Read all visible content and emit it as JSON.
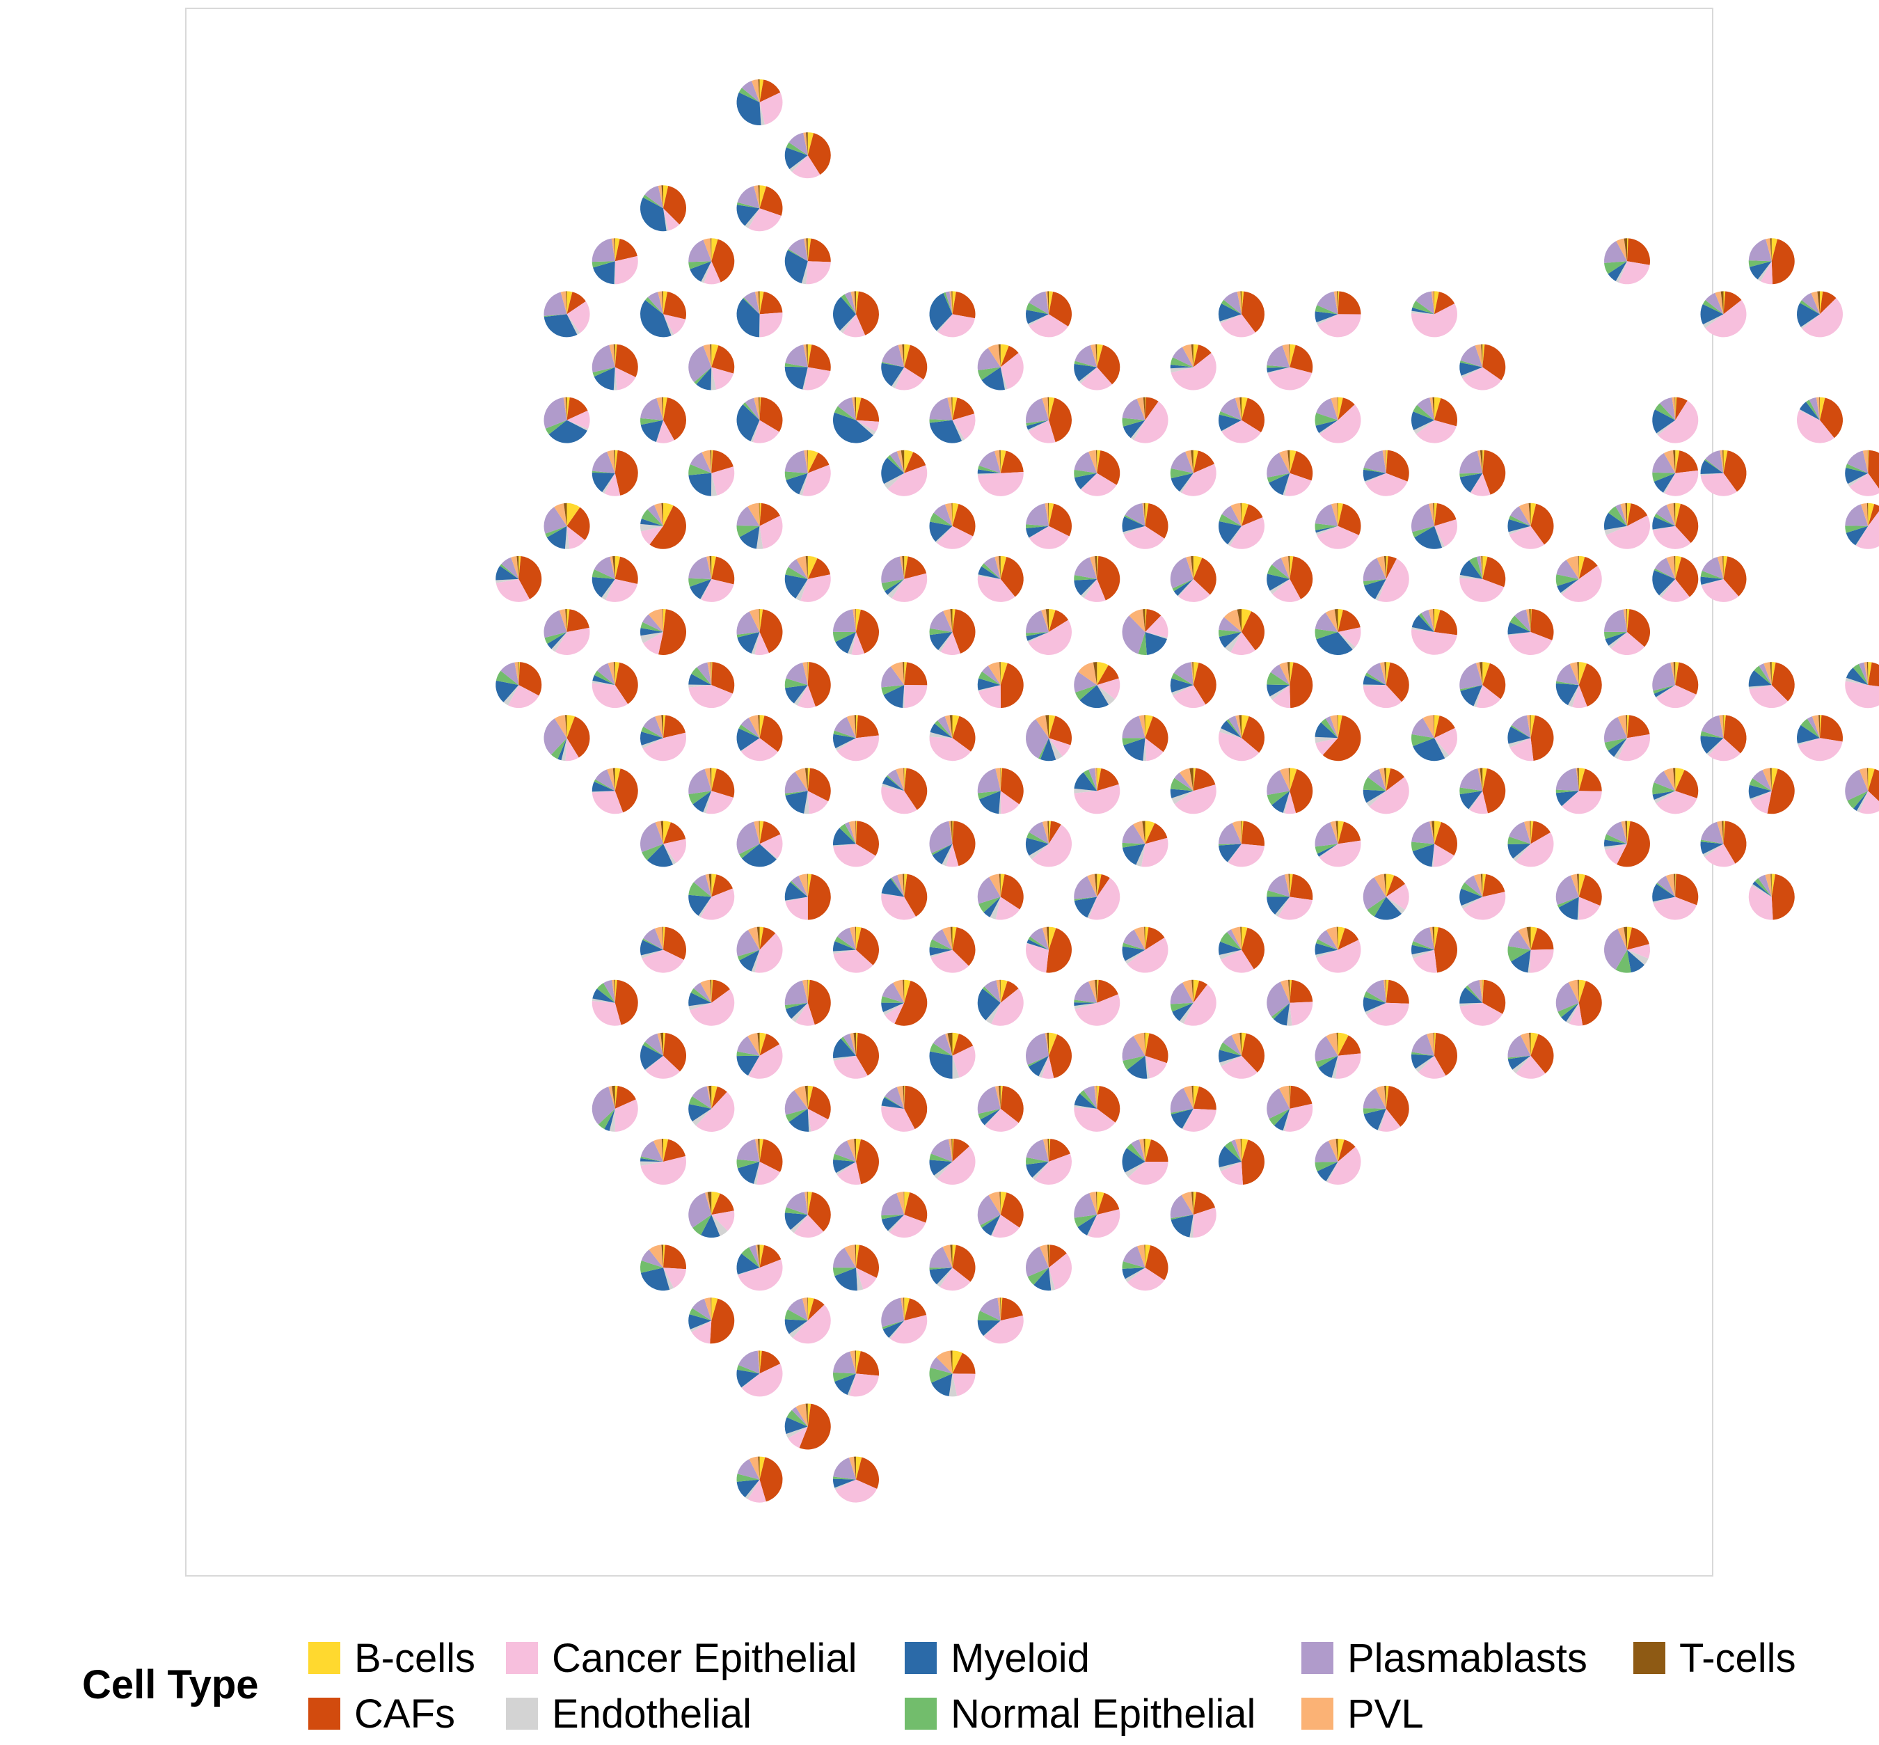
{
  "chart_data": {
    "type": "scatter-pie",
    "title": "",
    "xlabel": "",
    "ylabel": "",
    "grid": false,
    "legend": {
      "title": "Cell Type",
      "placement": "bottom",
      "columns": 5
    },
    "categories": [
      {
        "name": "B-cells",
        "color": "#FFD92F"
      },
      {
        "name": "CAFs",
        "color": "#D24B0E"
      },
      {
        "name": "Cancer Epithelial",
        "color": "#F7BFDD"
      },
      {
        "name": "Endothelial",
        "color": "#D3D3D3"
      },
      {
        "name": "Myeloid",
        "color": "#2B6AA8"
      },
      {
        "name": "Normal Epithelial",
        "color": "#72BD6C"
      },
      {
        "name": "Plasmablasts",
        "color": "#B09BCB"
      },
      {
        "name": "PVL",
        "color": "#FBB275"
      },
      {
        "name": "T-cells",
        "color": "#8E5A14"
      }
    ],
    "spot_rows": [
      {
        "y": 0,
        "segments": [
          [
            10,
            11
          ]
        ]
      },
      {
        "y": 1,
        "segments": [
          [
            10,
            11
          ]
        ]
      },
      {
        "y": 2,
        "segments": [
          [
            8,
            11
          ]
        ]
      },
      {
        "y": 3,
        "segments": [
          [
            7,
            12
          ]
        ],
        "extra": [
          [
            28,
            1
          ],
          [
            31,
            1
          ]
        ]
      },
      {
        "y": 4,
        "segments": [
          [
            6,
            16
          ],
          [
            19,
            20
          ],
          [
            22,
            24
          ]
        ],
        "extra": [
          [
            30,
            0
          ],
          [
            32,
            0
          ]
        ]
      },
      {
        "y": 5,
        "segments": [
          [
            6,
            22
          ],
          [
            24,
            25
          ]
        ]
      },
      {
        "y": 6,
        "segments": [
          [
            6,
            23
          ],
          [
            24,
            25
          ]
        ],
        "extra": [
          [
            29,
            0
          ],
          [
            32,
            0
          ]
        ]
      },
      {
        "y": 7,
        "segments": [
          [
            6,
            26
          ]
        ],
        "extra": [
          [
            29,
            0
          ],
          [
            30,
            1
          ],
          [
            33,
            0
          ]
        ]
      },
      {
        "y": 8,
        "segments": [
          [
            6,
            11
          ],
          [
            13,
            28
          ]
        ],
        "extra": [
          [
            29,
            0
          ],
          [
            33,
            0
          ]
        ]
      },
      {
        "y": 9,
        "segments": [
          [
            5,
            28
          ]
        ],
        "extra": [
          [
            29,
            0
          ],
          [
            30,
            0
          ]
        ]
      },
      {
        "y": 10,
        "segments": [
          [
            5,
            29
          ]
        ]
      },
      {
        "y": 11,
        "segments": [
          [
            5,
            33
          ]
        ]
      },
      {
        "y": 12,
        "segments": [
          [
            6,
            33
          ]
        ]
      },
      {
        "y": 13,
        "segments": [
          [
            7,
            33
          ]
        ]
      },
      {
        "y": 14,
        "segments": [
          [
            8,
            18
          ],
          [
            20,
            31
          ]
        ]
      },
      {
        "y": 15,
        "segments": [
          [
            8,
            18
          ],
          [
            20,
            31
          ]
        ]
      },
      {
        "y": 16,
        "segments": [
          [
            8,
            29
          ]
        ]
      },
      {
        "y": 17,
        "segments": [
          [
            7,
            27
          ]
        ]
      },
      {
        "y": 18,
        "segments": [
          [
            7,
            26
          ]
        ]
      },
      {
        "y": 19,
        "segments": [
          [
            7,
            23
          ]
        ]
      },
      {
        "y": 20,
        "segments": [
          [
            7,
            22
          ]
        ]
      },
      {
        "y": 21,
        "segments": [
          [
            8,
            20
          ]
        ]
      },
      {
        "y": 22,
        "segments": [
          [
            8,
            18
          ]
        ]
      },
      {
        "y": 23,
        "segments": [
          [
            9,
            16
          ]
        ]
      },
      {
        "y": 24,
        "segments": [
          [
            9,
            15
          ]
        ]
      },
      {
        "y": 25,
        "segments": [
          [
            10,
            12
          ]
        ]
      },
      {
        "y": 26,
        "segments": [
          [
            10,
            12
          ]
        ]
      }
    ]
  }
}
